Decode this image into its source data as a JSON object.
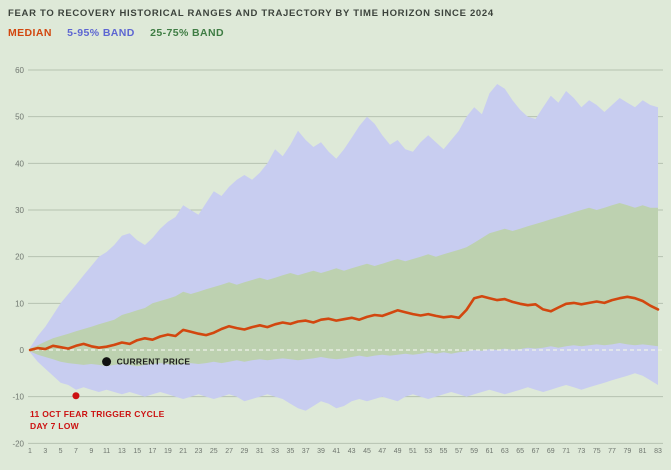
{
  "header": {
    "title": "FEAR TO RECOVERY HISTORICAL RANGES AND TRAJECTORY BY TIME HORIZON SINCE 2024"
  },
  "legend": [
    {
      "label": "MEDIAN",
      "color": "#d2470f"
    },
    {
      "label": "5-95% BAND",
      "color": "#5d66d2"
    },
    {
      "label": "25-75% BAND",
      "color": "#3f7d44"
    }
  ],
  "colors": {
    "background": "#dee9d8",
    "grid": "#b6c2b1",
    "zero_line": "#eef3ea",
    "tick": "#6f766f",
    "median_line": "#d2470f",
    "band_outer": "#c8cdf0",
    "band_inner": "#bdd1b0"
  },
  "chart_data": {
    "type": "area",
    "title": "FEAR TO RECOVERY HISTORICAL RANGES AND TRAJECTORY BY TIME HORIZON SINCE 2024",
    "xlabel": "",
    "ylabel": "",
    "ylim": [
      -20,
      60
    ],
    "yticks": [
      -20,
      -10,
      0,
      10,
      20,
      30,
      40,
      50,
      60
    ],
    "xticks": [
      1,
      3,
      5,
      7,
      9,
      11,
      13,
      15,
      17,
      19,
      21,
      23,
      25,
      27,
      29,
      31,
      33,
      35,
      37,
      39,
      41,
      43,
      45,
      47,
      49,
      51,
      53,
      55,
      57,
      59,
      61,
      63,
      65,
      67,
      69,
      71,
      73,
      75,
      77,
      79,
      81,
      83
    ],
    "x": [
      1,
      2,
      3,
      4,
      5,
      6,
      7,
      8,
      9,
      10,
      11,
      12,
      13,
      14,
      15,
      16,
      17,
      18,
      19,
      20,
      21,
      22,
      23,
      24,
      25,
      26,
      27,
      28,
      29,
      30,
      31,
      32,
      33,
      34,
      35,
      36,
      37,
      38,
      39,
      40,
      41,
      42,
      43,
      44,
      45,
      46,
      47,
      48,
      49,
      50,
      51,
      52,
      53,
      54,
      55,
      56,
      57,
      58,
      59,
      60,
      61,
      62,
      63,
      64,
      65,
      66,
      67,
      68,
      69,
      70,
      71,
      72,
      73,
      74,
      75,
      76,
      77,
      78,
      79,
      80,
      81,
      82,
      83
    ],
    "series": [
      {
        "name": "5-95% band",
        "kind": "band",
        "color": "#c8cdf0",
        "high": [
          0.5,
          3,
          5,
          7.5,
          10,
          12,
          14,
          16,
          18,
          20,
          21,
          22.5,
          24.5,
          25,
          23.5,
          22.5,
          24,
          26,
          27.5,
          28.5,
          31,
          30,
          29,
          31.5,
          34,
          33,
          35,
          36.5,
          37.5,
          36.5,
          38,
          40,
          43,
          41.5,
          44,
          47,
          45,
          43.5,
          44.5,
          42.5,
          41,
          43,
          45.5,
          48,
          50,
          48.5,
          46,
          44,
          45,
          43,
          42.5,
          44.5,
          46,
          44.5,
          43,
          45,
          47,
          50,
          52,
          50.5,
          55,
          57,
          56,
          53.5,
          51.5,
          50,
          49.5,
          52,
          54.5,
          53,
          55.5,
          54,
          52,
          53.5,
          52.5,
          51,
          52.5,
          54,
          53,
          52,
          53.5,
          52.5,
          52
        ],
        "low": [
          -0.5,
          -2.5,
          -4,
          -5.5,
          -7,
          -7.5,
          -8.5,
          -8,
          -8.5,
          -9,
          -8.5,
          -9,
          -9.5,
          -9,
          -9.5,
          -10,
          -9.5,
          -9,
          -9.5,
          -10,
          -10.5,
          -10,
          -9.5,
          -10,
          -10.5,
          -10,
          -9.5,
          -10,
          -11,
          -10.5,
          -10,
          -9.5,
          -10,
          -10.5,
          -11.5,
          -12.5,
          -13,
          -12,
          -11,
          -11.5,
          -12.5,
          -12,
          -11,
          -10.5,
          -11,
          -10.5,
          -10,
          -10.5,
          -11,
          -10,
          -9.5,
          -10,
          -10.5,
          -10,
          -9.5,
          -9,
          -9.5,
          -10,
          -9.5,
          -9,
          -8.5,
          -9,
          -9.5,
          -9,
          -8.5,
          -8,
          -8.5,
          -9,
          -8.5,
          -8,
          -7.5,
          -8,
          -8.5,
          -8,
          -7.5,
          -7,
          -6.5,
          -6,
          -5.5,
          -5,
          -5.5,
          -6.5,
          -7.5
        ]
      },
      {
        "name": "25-75% band",
        "kind": "band",
        "color": "#bdd1b0",
        "high": [
          0.3,
          1,
          1.8,
          2.5,
          3,
          3.5,
          4,
          4.5,
          5,
          5.5,
          6,
          6.5,
          7.5,
          8,
          8.5,
          9,
          10,
          10.5,
          11,
          11.5,
          12.5,
          12,
          12.5,
          13,
          13.5,
          14,
          14.5,
          14,
          14.5,
          15,
          15.5,
          15,
          15.5,
          16,
          16.5,
          16,
          16.5,
          17,
          16.5,
          17,
          17.5,
          17,
          17.5,
          18,
          18.5,
          18,
          18.5,
          19,
          19.5,
          19,
          19.5,
          20,
          20.5,
          20,
          20.5,
          21,
          21.5,
          22,
          23,
          24,
          25,
          25.5,
          26,
          25.5,
          26,
          26.5,
          27,
          27.5,
          28,
          28.5,
          29,
          29.5,
          30,
          30.5,
          30,
          30.5,
          31,
          31.5,
          31,
          30.5,
          31,
          30.5,
          30.5
        ],
        "low": [
          -0.3,
          -1,
          -1.5,
          -2,
          -2.5,
          -2.8,
          -3,
          -3.2,
          -3,
          -3.2,
          -3.5,
          -3.2,
          -3,
          -3.2,
          -3.5,
          -3.2,
          -3,
          -2.8,
          -3,
          -3.2,
          -3,
          -2.8,
          -3,
          -2.8,
          -2.5,
          -2.8,
          -2.5,
          -2.2,
          -2.5,
          -2.2,
          -2,
          -2.2,
          -2,
          -1.8,
          -2,
          -2.2,
          -2,
          -1.8,
          -1.5,
          -1.8,
          -2,
          -1.8,
          -1.5,
          -1.2,
          -1.5,
          -1.2,
          -1,
          -1.2,
          -1,
          -0.8,
          -1,
          -0.8,
          -0.5,
          -0.8,
          -0.5,
          -0.8,
          -0.5,
          -0.3,
          0,
          -0.2,
          0.2,
          0,
          0.3,
          0,
          0.2,
          0.5,
          0.3,
          0.5,
          0.8,
          0.5,
          0.8,
          1,
          0.8,
          1,
          1.2,
          1,
          1.2,
          1.5,
          1.2,
          1,
          1.2,
          1,
          0.8
        ]
      },
      {
        "name": "median",
        "kind": "line",
        "color": "#d2470f",
        "values": [
          0,
          0.4,
          0.2,
          0.9,
          0.6,
          0.3,
          0.9,
          1.3,
          0.8,
          0.5,
          0.7,
          1.1,
          1.6,
          1.3,
          2.1,
          2.5,
          2.2,
          2.9,
          3.3,
          3.0,
          4.3,
          3.9,
          3.5,
          3.2,
          3.7,
          4.5,
          5.1,
          4.7,
          4.4,
          4.9,
          5.3,
          4.9,
          5.5,
          5.9,
          5.6,
          6.1,
          6.3,
          5.9,
          6.5,
          6.7,
          6.3,
          6.6,
          6.9,
          6.5,
          7.1,
          7.5,
          7.3,
          7.9,
          8.5,
          8.1,
          7.7,
          7.4,
          7.7,
          7.3,
          7.0,
          7.2,
          6.9,
          8.6,
          11.1,
          11.5,
          11.1,
          10.7,
          10.9,
          10.3,
          9.9,
          9.6,
          9.8,
          8.7,
          8.3,
          9.1,
          9.9,
          10.1,
          9.8,
          10.1,
          10.4,
          10.1,
          10.7,
          11.1,
          11.4,
          11.1,
          10.5,
          9.5,
          8.7
        ]
      }
    ],
    "annotations": [
      {
        "name": "current-price",
        "day": 11,
        "value": -2.5,
        "dot_color": "#111111",
        "dot_radius": 4.5,
        "label": "CURRENT PRICE",
        "label_color": "#1c1c1c",
        "placement": "right"
      },
      {
        "name": "fear-trigger-low",
        "day": 7,
        "value": -9.8,
        "dot_color": "#cc1111",
        "dot_radius": 3.5,
        "label": "11 OCT FEAR TRIGGER CYCLE\nDAY 7 LOW",
        "label_color": "#cc1111",
        "placement": "bottom-left"
      }
    ]
  }
}
